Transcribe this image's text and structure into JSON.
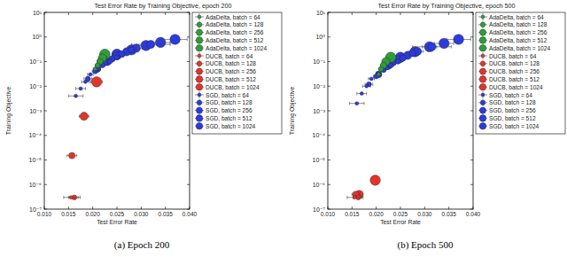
{
  "chart_data": [
    {
      "type": "scatter",
      "title": "Test Error Rate by Training Objective, epoch 200",
      "x_label": "Test Error Rate",
      "y_label": "Training Objective",
      "caption": "(a) Epoch 200",
      "log": "y",
      "grid": false,
      "legend": "right",
      "marker": "circle",
      "xlim": [
        0.01,
        0.04
      ],
      "xticks": [
        {
          "value": 0.01,
          "label": "0.010"
        },
        {
          "value": 0.015,
          "label": "0.015"
        },
        {
          "value": 0.02,
          "label": "0.020"
        },
        {
          "value": 0.025,
          "label": "0.025"
        },
        {
          "value": 0.03,
          "label": "0.030"
        },
        {
          "value": 0.035,
          "label": "0.035"
        },
        {
          "value": 0.04,
          "label": "0.040"
        }
      ],
      "ylim": [
        1e-07,
        10
      ],
      "yticks": [
        {
          "value": 10,
          "label": "10¹"
        },
        {
          "value": 1,
          "label": "10⁰"
        },
        {
          "value": 0.1,
          "label": "10⁻¹"
        },
        {
          "value": 0.01,
          "label": "10⁻²"
        },
        {
          "value": 0.001,
          "label": "10⁻³"
        },
        {
          "value": 0.0001,
          "label": "10⁻⁴"
        },
        {
          "value": 1e-05,
          "label": "10⁻⁵"
        },
        {
          "value": 1e-06,
          "label": "10⁻⁶"
        },
        {
          "value": 1e-07,
          "label": "10⁻⁷"
        }
      ],
      "series": [
        {
          "name": "AdaDelta, batch = 64",
          "color": "#2e9e3a",
          "x": [
            0.0205
          ],
          "values": [
            0.05
          ],
          "x_err": [
            0.0004
          ]
        },
        {
          "name": "AdaDelta, batch = 128",
          "color": "#2e9e3a",
          "x": [
            0.021
          ],
          "values": [
            0.07
          ],
          "x_err": [
            0.0005
          ]
        },
        {
          "name": "AdaDelta, batch = 256",
          "color": "#2e9e3a",
          "x": [
            0.0215
          ],
          "values": [
            0.1
          ],
          "x_err": [
            0.0006
          ]
        },
        {
          "name": "AdaDelta, batch = 512",
          "color": "#2e9e3a",
          "x": [
            0.022
          ],
          "values": [
            0.14
          ],
          "x_err": [
            0.0008
          ]
        },
        {
          "name": "AdaDelta, batch = 1024",
          "color": "#2e9e3a",
          "x": [
            0.0225
          ],
          "values": [
            0.2
          ],
          "x_err": [
            0.001
          ]
        },
        {
          "name": "DUCB, batch = 64",
          "color": "#e3342b",
          "x": [
            0.0155
          ],
          "values": [
            3e-07
          ],
          "x_err": [
            0.0015
          ]
        },
        {
          "name": "DUCB, batch = 128",
          "color": "#e3342b",
          "x": [
            0.0162
          ],
          "values": [
            3e-07
          ],
          "x_err": [
            0.0012
          ]
        },
        {
          "name": "DUCB, batch = 256",
          "color": "#e3342b",
          "x": [
            0.0157
          ],
          "values": [
            1.5e-05
          ],
          "x_err": [
            0.001
          ]
        },
        {
          "name": "DUCB, batch = 512",
          "color": "#e3342b",
          "x": [
            0.0182
          ],
          "values": [
            0.0006
          ],
          "x_err": [
            0.001
          ]
        },
        {
          "name": "DUCB, batch = 1024",
          "color": "#e3342b",
          "x": [
            0.0208
          ],
          "values": [
            0.015
          ],
          "x_err": [
            0.0012
          ]
        },
        {
          "name": "SGD, batch = 64",
          "color": "#2b3be0",
          "x": [
            0.0165,
            0.0175,
            0.0185,
            0.0195,
            0.021
          ],
          "values": [
            0.004,
            0.008,
            0.015,
            0.03,
            0.05
          ],
          "x_err": [
            0.0015,
            0.001,
            0.0008,
            0.0006,
            0.0005
          ]
        },
        {
          "name": "SGD, batch = 128",
          "color": "#2b3be0",
          "x": [
            0.019,
            0.0205,
            0.022,
            0.0235,
            0.025
          ],
          "values": [
            0.02,
            0.04,
            0.07,
            0.1,
            0.15
          ],
          "x_err": [
            0.0008,
            0.0006,
            0.0005,
            0.0006,
            0.0007
          ]
        },
        {
          "name": "SGD, batch = 256",
          "color": "#2b3be0",
          "x": [
            0.021,
            0.0225,
            0.024,
            0.026,
            0.028
          ],
          "values": [
            0.05,
            0.09,
            0.13,
            0.2,
            0.3
          ],
          "x_err": [
            0.0006,
            0.0005,
            0.0006,
            0.0008,
            0.001
          ]
        },
        {
          "name": "SGD, batch = 512",
          "color": "#2b3be0",
          "x": [
            0.023,
            0.025,
            0.027,
            0.029,
            0.032
          ],
          "values": [
            0.1,
            0.17,
            0.25,
            0.35,
            0.5
          ],
          "x_err": [
            0.0007,
            0.0008,
            0.001,
            0.0012,
            0.004
          ]
        },
        {
          "name": "SGD, batch = 1024",
          "color": "#2b3be0",
          "x": [
            0.025,
            0.028,
            0.031,
            0.034,
            0.037
          ],
          "values": [
            0.2,
            0.3,
            0.45,
            0.6,
            0.8
          ],
          "x_err": [
            0.001,
            0.0012,
            0.0015,
            0.002,
            0.0025
          ]
        }
      ]
    },
    {
      "type": "scatter",
      "title": "Test Error Rate by Training Objective, epoch 500",
      "x_label": "Test Error Rate",
      "y_label": "Training Objective",
      "caption": "(b) Epoch 500",
      "log": "y",
      "grid": false,
      "legend": "right",
      "marker": "circle",
      "xlim": [
        0.01,
        0.04
      ],
      "xticks": [
        {
          "value": 0.01,
          "label": "0.010"
        },
        {
          "value": 0.015,
          "label": "0.015"
        },
        {
          "value": 0.02,
          "label": "0.020"
        },
        {
          "value": 0.025,
          "label": "0.025"
        },
        {
          "value": 0.03,
          "label": "0.030"
        },
        {
          "value": 0.035,
          "label": "0.035"
        },
        {
          "value": 0.04,
          "label": "0.040"
        }
      ],
      "ylim": [
        1e-07,
        10
      ],
      "yticks": [
        {
          "value": 10,
          "label": "10¹"
        },
        {
          "value": 1,
          "label": "10⁰"
        },
        {
          "value": 0.1,
          "label": "10⁻¹"
        },
        {
          "value": 0.01,
          "label": "10⁻²"
        },
        {
          "value": 0.001,
          "label": "10⁻³"
        },
        {
          "value": 0.0001,
          "label": "10⁻⁴"
        },
        {
          "value": 1e-05,
          "label": "10⁻⁵"
        },
        {
          "value": 1e-06,
          "label": "10⁻⁶"
        },
        {
          "value": 1e-07,
          "label": "10⁻⁷"
        }
      ],
      "series": [
        {
          "name": "AdaDelta, batch = 64",
          "color": "#2e9e3a",
          "x": [
            0.0205
          ],
          "values": [
            0.03
          ],
          "x_err": [
            0.0004
          ]
        },
        {
          "name": "AdaDelta, batch = 128",
          "color": "#2e9e3a",
          "x": [
            0.021
          ],
          "values": [
            0.05
          ],
          "x_err": [
            0.0005
          ]
        },
        {
          "name": "AdaDelta, batch = 256",
          "color": "#2e9e3a",
          "x": [
            0.0215
          ],
          "values": [
            0.07
          ],
          "x_err": [
            0.0006
          ]
        },
        {
          "name": "AdaDelta, batch = 512",
          "color": "#2e9e3a",
          "x": [
            0.022
          ],
          "values": [
            0.1
          ],
          "x_err": [
            0.0008
          ]
        },
        {
          "name": "AdaDelta, batch = 1024",
          "color": "#2e9e3a",
          "x": [
            0.023
          ],
          "values": [
            0.15
          ],
          "x_err": [
            0.001
          ]
        },
        {
          "name": "DUCB, batch = 64",
          "color": "#e3342b",
          "x": [
            0.0155
          ],
          "values": [
            3e-07
          ],
          "x_err": [
            0.0015
          ]
        },
        {
          "name": "DUCB, batch = 128",
          "color": "#e3342b",
          "x": [
            0.0163
          ],
          "values": [
            3e-07
          ],
          "x_err": [
            0.001
          ]
        },
        {
          "name": "DUCB, batch = 256",
          "color": "#e3342b",
          "x": [
            0.0158
          ],
          "values": [
            4e-07
          ],
          "x_err": [
            0.0008
          ]
        },
        {
          "name": "DUCB, batch = 512",
          "color": "#e3342b",
          "x": [
            0.0165
          ],
          "values": [
            4e-07
          ],
          "x_err": [
            0.0006
          ]
        },
        {
          "name": "DUCB, batch = 1024",
          "color": "#e3342b",
          "x": [
            0.0198
          ],
          "values": [
            1.5e-06
          ],
          "x_err": [
            0.0008
          ]
        },
        {
          "name": "SGD, batch = 64",
          "color": "#2b3be0",
          "x": [
            0.016,
            0.017,
            0.018,
            0.019,
            0.0205
          ],
          "values": [
            0.002,
            0.005,
            0.01,
            0.02,
            0.035
          ],
          "x_err": [
            0.0015,
            0.001,
            0.0008,
            0.0006,
            0.0005
          ]
        },
        {
          "name": "SGD, batch = 128",
          "color": "#2b3be0",
          "x": [
            0.0185,
            0.02,
            0.0215,
            0.023,
            0.0245
          ],
          "values": [
            0.012,
            0.025,
            0.045,
            0.07,
            0.1
          ],
          "x_err": [
            0.0008,
            0.0006,
            0.0005,
            0.0006,
            0.0007
          ]
        },
        {
          "name": "SGD, batch = 256",
          "color": "#2b3be0",
          "x": [
            0.0205,
            0.022,
            0.0235,
            0.0255,
            0.0275
          ],
          "values": [
            0.03,
            0.06,
            0.09,
            0.14,
            0.22
          ],
          "x_err": [
            0.0006,
            0.0005,
            0.0006,
            0.0008,
            0.001
          ]
        },
        {
          "name": "SGD, batch = 512",
          "color": "#2b3be0",
          "x": [
            0.0225,
            0.0245,
            0.0265,
            0.0285,
            0.0315
          ],
          "values": [
            0.07,
            0.12,
            0.18,
            0.26,
            0.4
          ],
          "x_err": [
            0.0007,
            0.0008,
            0.001,
            0.0012,
            0.004
          ]
        },
        {
          "name": "SGD, batch = 1024",
          "color": "#2b3be0",
          "x": [
            0.025,
            0.028,
            0.031,
            0.034,
            0.037
          ],
          "values": [
            0.15,
            0.25,
            0.4,
            0.55,
            0.8
          ],
          "x_err": [
            0.001,
            0.0012,
            0.0015,
            0.002,
            0.0025
          ]
        }
      ]
    }
  ]
}
